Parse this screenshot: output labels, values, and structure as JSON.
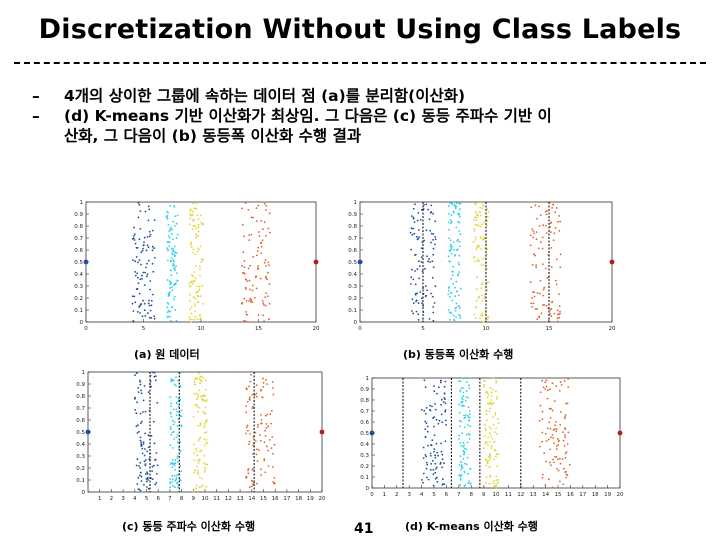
{
  "slide": {
    "title": "Discretization Without Using Class Labels",
    "bullets": [
      {
        "dash": "–",
        "lines": [
          "4개의 상이한 그룹에 속하는 데이터 점 (a)를 분리함(이산화)"
        ]
      },
      {
        "dash": "–",
        "lines": [
          "(d) K-means 기반 이산화가 최상임. 그 다음은 (c) 동등 주파수 기반 이",
          "산화, 그 다음이 (b) 동등폭 이산화 수행 결과"
        ]
      }
    ],
    "page_number": "41"
  },
  "chart_data": [
    {
      "type": "scatter",
      "caption": "(a) 원 데이터",
      "xlim": [
        0,
        20
      ],
      "ylim": [
        0,
        1
      ],
      "xticks": [
        "0",
        "5",
        "10",
        "15",
        "20"
      ],
      "yticks": [
        "0",
        "0.1",
        "0.2",
        "0.3",
        "0.4",
        "0.5",
        "0.6",
        "0.7",
        "0.8",
        "0.9",
        "1"
      ],
      "series": [
        {
          "color": "#1f4e9a",
          "x_range": [
            4,
            6
          ],
          "y_range": [
            0,
            1
          ],
          "count": 100
        },
        {
          "color": "#2fd0e6",
          "x_range": [
            7,
            8
          ],
          "y_range": [
            0,
            1
          ],
          "count": 100
        },
        {
          "color": "#e2d43a",
          "x_range": [
            9,
            10.2
          ],
          "y_range": [
            0,
            1
          ],
          "count": 100
        },
        {
          "color": "#e0632a",
          "x_range": [
            13.5,
            16
          ],
          "y_range": [
            0,
            1
          ],
          "count": 100
        }
      ],
      "outliers": [
        {
          "x": 0,
          "y": 0.5,
          "color": "#1f4e9a"
        },
        {
          "x": 20,
          "y": 0.5,
          "color": "#b51c1c"
        }
      ],
      "boundaries": []
    },
    {
      "type": "scatter",
      "caption": "(b) 동등폭 이산화 수행",
      "xlim": [
        0,
        20
      ],
      "ylim": [
        0,
        1
      ],
      "xticks": [
        "0",
        "5",
        "10",
        "15",
        "20"
      ],
      "yticks": [
        "0",
        "0.1",
        "0.2",
        "0.3",
        "0.4",
        "0.5",
        "0.6",
        "0.7",
        "0.8",
        "0.9",
        "1"
      ],
      "series": [
        {
          "color": "#1f4e9a",
          "x_range": [
            4,
            6
          ],
          "y_range": [
            0,
            1
          ],
          "count": 100
        },
        {
          "color": "#2fd0e6",
          "x_range": [
            7,
            8
          ],
          "y_range": [
            0,
            1
          ],
          "count": 100
        },
        {
          "color": "#e2d43a",
          "x_range": [
            9,
            10.2
          ],
          "y_range": [
            0,
            1
          ],
          "count": 100
        },
        {
          "color": "#e0632a",
          "x_range": [
            13.5,
            16
          ],
          "y_range": [
            0,
            1
          ],
          "count": 100
        }
      ],
      "outliers": [
        {
          "x": 0,
          "y": 0.5,
          "color": "#1f4e9a"
        },
        {
          "x": 20,
          "y": 0.5,
          "color": "#b51c1c"
        }
      ],
      "boundaries": [
        5,
        10,
        15
      ]
    },
    {
      "type": "scatter",
      "caption": "(c) 동등 주파수 이산화 수행",
      "xlim": [
        0,
        20
      ],
      "ylim": [
        0,
        1
      ],
      "xticks": [
        "1",
        "2",
        "3",
        "4",
        "5",
        "6",
        "7",
        "8",
        "9",
        "10",
        "11",
        "12",
        "13",
        "14",
        "15",
        "16",
        "17",
        "18",
        "19",
        "20"
      ],
      "yticks": [
        "0",
        "0.1",
        "0.2",
        "0.3",
        "0.4",
        "0.5",
        "0.6",
        "0.7",
        "0.8",
        "0.9",
        "1"
      ],
      "series": [
        {
          "color": "#1f4e9a",
          "x_range": [
            4,
            6
          ],
          "y_range": [
            0,
            1
          ],
          "count": 100
        },
        {
          "color": "#2fd0e6",
          "x_range": [
            7,
            8
          ],
          "y_range": [
            0,
            1
          ],
          "count": 100
        },
        {
          "color": "#e2d43a",
          "x_range": [
            9,
            10.2
          ],
          "y_range": [
            0,
            1
          ],
          "count": 100
        },
        {
          "color": "#e0632a",
          "x_range": [
            13.5,
            16
          ],
          "y_range": [
            0,
            1
          ],
          "count": 100
        }
      ],
      "outliers": [
        {
          "x": 0,
          "y": 0.5,
          "color": "#1f4e9a"
        },
        {
          "x": 20,
          "y": 0.5,
          "color": "#b51c1c"
        }
      ],
      "boundaries": [
        5.3,
        7.8,
        14.2
      ]
    },
    {
      "type": "scatter",
      "caption": "(d) K-means 이산화 수행",
      "xlim": [
        0,
        20
      ],
      "ylim": [
        0,
        1
      ],
      "xticks": [
        "0",
        "1",
        "2",
        "3",
        "4",
        "5",
        "6",
        "7",
        "8",
        "9",
        "10",
        "11",
        "12",
        "13",
        "14",
        "15",
        "16",
        "17",
        "18",
        "19",
        "20"
      ],
      "yticks": [
        "0",
        "0.1",
        "0.2",
        "0.3",
        "0.4",
        "0.5",
        "0.6",
        "0.7",
        "0.8",
        "0.9",
        "1"
      ],
      "series": [
        {
          "color": "#1f4e9a",
          "x_range": [
            4,
            6
          ],
          "y_range": [
            0,
            1
          ],
          "count": 100
        },
        {
          "color": "#2fd0e6",
          "x_range": [
            7,
            8
          ],
          "y_range": [
            0,
            1
          ],
          "count": 100
        },
        {
          "color": "#e2d43a",
          "x_range": [
            9,
            10.2
          ],
          "y_range": [
            0,
            1
          ],
          "count": 100
        },
        {
          "color": "#e0632a",
          "x_range": [
            13.5,
            16
          ],
          "y_range": [
            0,
            1
          ],
          "count": 100
        }
      ],
      "outliers": [
        {
          "x": 0,
          "y": 0.5,
          "color": "#1f4e9a"
        },
        {
          "x": 20,
          "y": 0.5,
          "color": "#b51c1c"
        }
      ],
      "boundaries": [
        2.5,
        6.4,
        8.7,
        12
      ]
    }
  ]
}
